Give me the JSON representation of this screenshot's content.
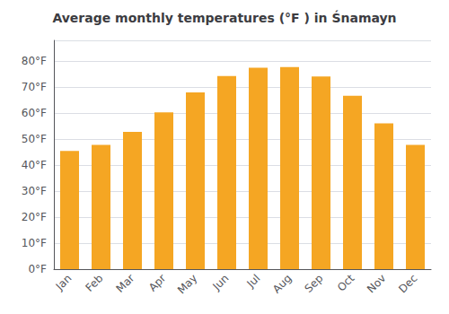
{
  "chart_data": {
    "type": "bar",
    "title": "Average monthly temperatures (°F ) in Śnamayn",
    "categories": [
      "Jan",
      "Feb",
      "Mar",
      "Apr",
      "May",
      "Jun",
      "Jul",
      "Aug",
      "Sep",
      "Oct",
      "Nov",
      "Dec"
    ],
    "values": [
      45.5,
      47.8,
      52.8,
      60.3,
      68.0,
      74.3,
      77.5,
      77.7,
      74.1,
      66.7,
      56.1,
      47.8
    ],
    "color": "#F5A623",
    "ylim": [
      0,
      88
    ],
    "yticks": [
      {
        "value": 0,
        "label": "0°F"
      },
      {
        "value": 10,
        "label": "10°F"
      },
      {
        "value": 20,
        "label": "20°F"
      },
      {
        "value": 30,
        "label": "30°F"
      },
      {
        "value": 40,
        "label": "40°F"
      },
      {
        "value": 50,
        "label": "50°F"
      },
      {
        "value": 60,
        "label": "60°F"
      },
      {
        "value": 70,
        "label": "70°F"
      },
      {
        "value": 80,
        "label": "80°F"
      }
    ],
    "grid": true
  }
}
